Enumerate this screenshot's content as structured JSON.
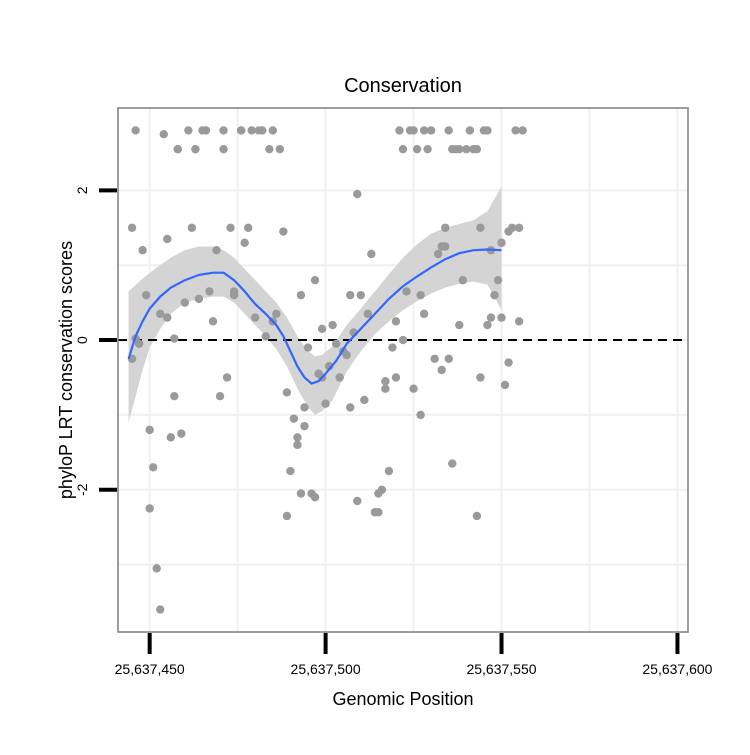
{
  "chart_data": {
    "type": "scatter",
    "title": "Conservation",
    "xlabel": "Genomic Position",
    "ylabel": "phyloP LRT conservation scores",
    "xlim": [
      25637441,
      25637603
    ],
    "ylim": [
      -3.9,
      3.1
    ],
    "x_ticks": [
      25637450,
      25637500,
      25637550,
      25637600
    ],
    "x_tick_labels": [
      "25,637,450",
      "25,637,500",
      "25,637,550",
      "25,637,600"
    ],
    "y_ticks": [
      -2,
      0,
      2
    ],
    "y_tick_labels": [
      "-2",
      "0",
      "2"
    ],
    "grid": true,
    "reference_line": {
      "y": 0,
      "style": "dashed"
    },
    "colors": {
      "points": "#9a9a9a",
      "smooth": "#3366ff",
      "band": "#d4d4d4",
      "grid": "#f0f0f0",
      "frame": "#7f7f7f"
    },
    "points": [
      [
        25637446,
        2.8
      ],
      [
        25637445,
        1.5
      ],
      [
        25637445,
        -0.25
      ],
      [
        25637446,
        0.02
      ],
      [
        25637447,
        -0.05
      ],
      [
        25637448,
        1.2
      ],
      [
        25637449,
        0.6
      ],
      [
        25637450,
        -1.2
      ],
      [
        25637450,
        -2.25
      ],
      [
        25637451,
        -1.7
      ],
      [
        25637452,
        -3.05
      ],
      [
        25637453,
        -3.6
      ],
      [
        25637453,
        0.35
      ],
      [
        25637454,
        2.75
      ],
      [
        25637455,
        1.35
      ],
      [
        25637455,
        0.3
      ],
      [
        25637456,
        -1.3
      ],
      [
        25637457,
        0.02
      ],
      [
        25637457,
        -0.75
      ],
      [
        25637458,
        2.55
      ],
      [
        25637458,
        2.55
      ],
      [
        25637459,
        -1.25
      ],
      [
        25637460,
        0.5
      ],
      [
        25637461,
        2.8
      ],
      [
        25637462,
        1.5
      ],
      [
        25637463,
        2.55
      ],
      [
        25637463,
        2.55
      ],
      [
        25637464,
        0.55
      ],
      [
        25637465,
        2.8
      ],
      [
        25637466,
        2.8
      ],
      [
        25637467,
        0.65
      ],
      [
        25637468,
        0.25
      ],
      [
        25637469,
        1.2
      ],
      [
        25637470,
        -0.75
      ],
      [
        25637471,
        2.8
      ],
      [
        25637471,
        2.55
      ],
      [
        25637472,
        -0.5
      ],
      [
        25637473,
        1.5
      ],
      [
        25637474,
        0.6
      ],
      [
        25637474,
        0.65
      ],
      [
        25637476,
        2.8
      ],
      [
        25637476,
        2.8
      ],
      [
        25637477,
        1.3
      ],
      [
        25637478,
        1.5
      ],
      [
        25637479,
        2.8
      ],
      [
        25637480,
        0.3
      ],
      [
        25637481,
        2.8
      ],
      [
        25637482,
        2.8
      ],
      [
        25637483,
        0.05
      ],
      [
        25637484,
        2.55
      ],
      [
        25637485,
        2.8
      ],
      [
        25637485,
        0.25
      ],
      [
        25637486,
        0.35
      ],
      [
        25637487,
        2.55
      ],
      [
        25637488,
        1.45
      ],
      [
        25637489,
        -0.7
      ],
      [
        25637489,
        -2.35
      ],
      [
        25637490,
        -1.75
      ],
      [
        25637491,
        -1.05
      ],
      [
        25637492,
        -1.3
      ],
      [
        25637492,
        -1.4
      ],
      [
        25637493,
        -2.05
      ],
      [
        25637493,
        0.6
      ],
      [
        25637494,
        -1.15
      ],
      [
        25637494,
        -0.9
      ],
      [
        25637495,
        -0.1
      ],
      [
        25637496,
        -2.05
      ],
      [
        25637497,
        -2.1
      ],
      [
        25637497,
        0.8
      ],
      [
        25637498,
        -0.45
      ],
      [
        25637499,
        -0.5
      ],
      [
        25637499,
        0.15
      ],
      [
        25637500,
        -0.85
      ],
      [
        25637501,
        -0.35
      ],
      [
        25637502,
        0.2
      ],
      [
        25637503,
        -0.05
      ],
      [
        25637504,
        -0.5
      ],
      [
        25637505,
        -0.15
      ],
      [
        25637506,
        -0.2
      ],
      [
        25637507,
        0.6
      ],
      [
        25637507,
        -0.9
      ],
      [
        25637508,
        0.1
      ],
      [
        25637509,
        -2.15
      ],
      [
        25637509,
        1.95
      ],
      [
        25637510,
        0.6
      ],
      [
        25637511,
        -0.8
      ],
      [
        25637512,
        0.35
      ],
      [
        25637513,
        1.15
      ],
      [
        25637514,
        -2.3
      ],
      [
        25637515,
        -2.3
      ],
      [
        25637515,
        -2.05
      ],
      [
        25637516,
        -2.0
      ],
      [
        25637517,
        -0.55
      ],
      [
        25637517,
        -0.65
      ],
      [
        25637518,
        -1.75
      ],
      [
        25637519,
        -0.1
      ],
      [
        25637520,
        0.25
      ],
      [
        25637520,
        -0.5
      ],
      [
        25637521,
        2.8
      ],
      [
        25637522,
        0.0
      ],
      [
        25637522,
        2.55
      ],
      [
        25637523,
        0.65
      ],
      [
        25637524,
        2.8
      ],
      [
        25637525,
        2.8
      ],
      [
        25637525,
        -0.65
      ],
      [
        25637526,
        2.55
      ],
      [
        25637527,
        -1.0
      ],
      [
        25637527,
        0.6
      ],
      [
        25637528,
        2.8
      ],
      [
        25637528,
        0.35
      ],
      [
        25637529,
        2.55
      ],
      [
        25637530,
        2.8
      ],
      [
        25637531,
        -0.25
      ],
      [
        25637532,
        1.15
      ],
      [
        25637533,
        1.25
      ],
      [
        25637533,
        -0.4
      ],
      [
        25637534,
        1.25
      ],
      [
        25637534,
        1.5
      ],
      [
        25637535,
        -0.25
      ],
      [
        25637535,
        2.8
      ],
      [
        25637536,
        2.55
      ],
      [
        25637536,
        -1.65
      ],
      [
        25637537,
        2.55
      ],
      [
        25637538,
        2.55
      ],
      [
        25637538,
        0.2
      ],
      [
        25637539,
        0.8
      ],
      [
        25637539,
        0.8
      ],
      [
        25637540,
        2.55
      ],
      [
        25637541,
        2.8
      ],
      [
        25637542,
        2.55
      ],
      [
        25637543,
        -2.35
      ],
      [
        25637543,
        2.55
      ],
      [
        25637544,
        1.5
      ],
      [
        25637544,
        -0.5
      ],
      [
        25637545,
        2.8
      ],
      [
        25637546,
        2.8
      ],
      [
        25637546,
        0.2
      ],
      [
        25637547,
        0.3
      ],
      [
        25637547,
        1.2
      ],
      [
        25637548,
        0.6
      ],
      [
        25637549,
        0.8
      ],
      [
        25637550,
        0.3
      ],
      [
        25637550,
        1.3
      ],
      [
        25637551,
        -0.6
      ],
      [
        25637552,
        1.45
      ],
      [
        25637552,
        -0.3
      ],
      [
        25637553,
        1.5
      ],
      [
        25637554,
        2.8
      ],
      [
        25637555,
        1.5
      ],
      [
        25637555,
        0.25
      ],
      [
        25637556,
        2.8
      ]
    ],
    "smooth": [
      [
        25637444,
        -0.25
      ],
      [
        25637446,
        0.05
      ],
      [
        25637448,
        0.25
      ],
      [
        25637450,
        0.42
      ],
      [
        25637453,
        0.58
      ],
      [
        25637456,
        0.7
      ],
      [
        25637460,
        0.8
      ],
      [
        25637464,
        0.87
      ],
      [
        25637468,
        0.9
      ],
      [
        25637471,
        0.9
      ],
      [
        25637474,
        0.8
      ],
      [
        25637477,
        0.65
      ],
      [
        25637480,
        0.48
      ],
      [
        25637483,
        0.35
      ],
      [
        25637486,
        0.2
      ],
      [
        25637488,
        0.05
      ],
      [
        25637490,
        -0.15
      ],
      [
        25637492,
        -0.35
      ],
      [
        25637494,
        -0.5
      ],
      [
        25637496,
        -0.58
      ],
      [
        25637498,
        -0.55
      ],
      [
        25637500,
        -0.45
      ],
      [
        25637503,
        -0.28
      ],
      [
        25637506,
        -0.05
      ],
      [
        25637510,
        0.15
      ],
      [
        25637514,
        0.35
      ],
      [
        25637518,
        0.55
      ],
      [
        25637522,
        0.72
      ],
      [
        25637526,
        0.85
      ],
      [
        25637530,
        0.97
      ],
      [
        25637534,
        1.08
      ],
      [
        25637538,
        1.16
      ],
      [
        25637542,
        1.2
      ],
      [
        25637546,
        1.21
      ],
      [
        25637550,
        1.2
      ]
    ],
    "band_upper": [
      [
        25637444,
        0.65
      ],
      [
        25637448,
        0.82
      ],
      [
        25637452,
        0.97
      ],
      [
        25637456,
        1.1
      ],
      [
        25637460,
        1.2
      ],
      [
        25637464,
        1.25
      ],
      [
        25637468,
        1.25
      ],
      [
        25637471,
        1.2
      ],
      [
        25637474,
        1.1
      ],
      [
        25637477,
        0.95
      ],
      [
        25637480,
        0.8
      ],
      [
        25637483,
        0.65
      ],
      [
        25637486,
        0.5
      ],
      [
        25637489,
        0.3
      ],
      [
        25637492,
        0.05
      ],
      [
        25637495,
        -0.15
      ],
      [
        25637497,
        -0.22
      ],
      [
        25637499,
        -0.2
      ],
      [
        25637502,
        -0.08
      ],
      [
        25637506,
        0.2
      ],
      [
        25637510,
        0.42
      ],
      [
        25637514,
        0.65
      ],
      [
        25637518,
        0.88
      ],
      [
        25637522,
        1.1
      ],
      [
        25637526,
        1.28
      ],
      [
        25637530,
        1.42
      ],
      [
        25637534,
        1.5
      ],
      [
        25637538,
        1.55
      ],
      [
        25637542,
        1.6
      ],
      [
        25637546,
        1.72
      ],
      [
        25637550,
        2.05
      ]
    ],
    "band_lower": [
      [
        25637444,
        -1.1
      ],
      [
        25637446,
        -0.75
      ],
      [
        25637448,
        -0.4
      ],
      [
        25637450,
        -0.1
      ],
      [
        25637453,
        0.15
      ],
      [
        25637456,
        0.35
      ],
      [
        25637460,
        0.5
      ],
      [
        25637464,
        0.55
      ],
      [
        25637468,
        0.58
      ],
      [
        25637471,
        0.58
      ],
      [
        25637474,
        0.5
      ],
      [
        25637477,
        0.35
      ],
      [
        25637480,
        0.2
      ],
      [
        25637483,
        0.05
      ],
      [
        25637486,
        -0.12
      ],
      [
        25637489,
        -0.35
      ],
      [
        25637492,
        -0.65
      ],
      [
        25637495,
        -0.9
      ],
      [
        25637497,
        -1.0
      ],
      [
        25637499,
        -0.95
      ],
      [
        25637502,
        -0.8
      ],
      [
        25637506,
        -0.42
      ],
      [
        25637510,
        -0.15
      ],
      [
        25637514,
        0.08
      ],
      [
        25637518,
        0.25
      ],
      [
        25637522,
        0.4
      ],
      [
        25637526,
        0.52
      ],
      [
        25637530,
        0.62
      ],
      [
        25637534,
        0.7
      ],
      [
        25637538,
        0.75
      ],
      [
        25637542,
        0.78
      ],
      [
        25637546,
        0.74
      ],
      [
        25637550,
        0.4
      ]
    ]
  }
}
